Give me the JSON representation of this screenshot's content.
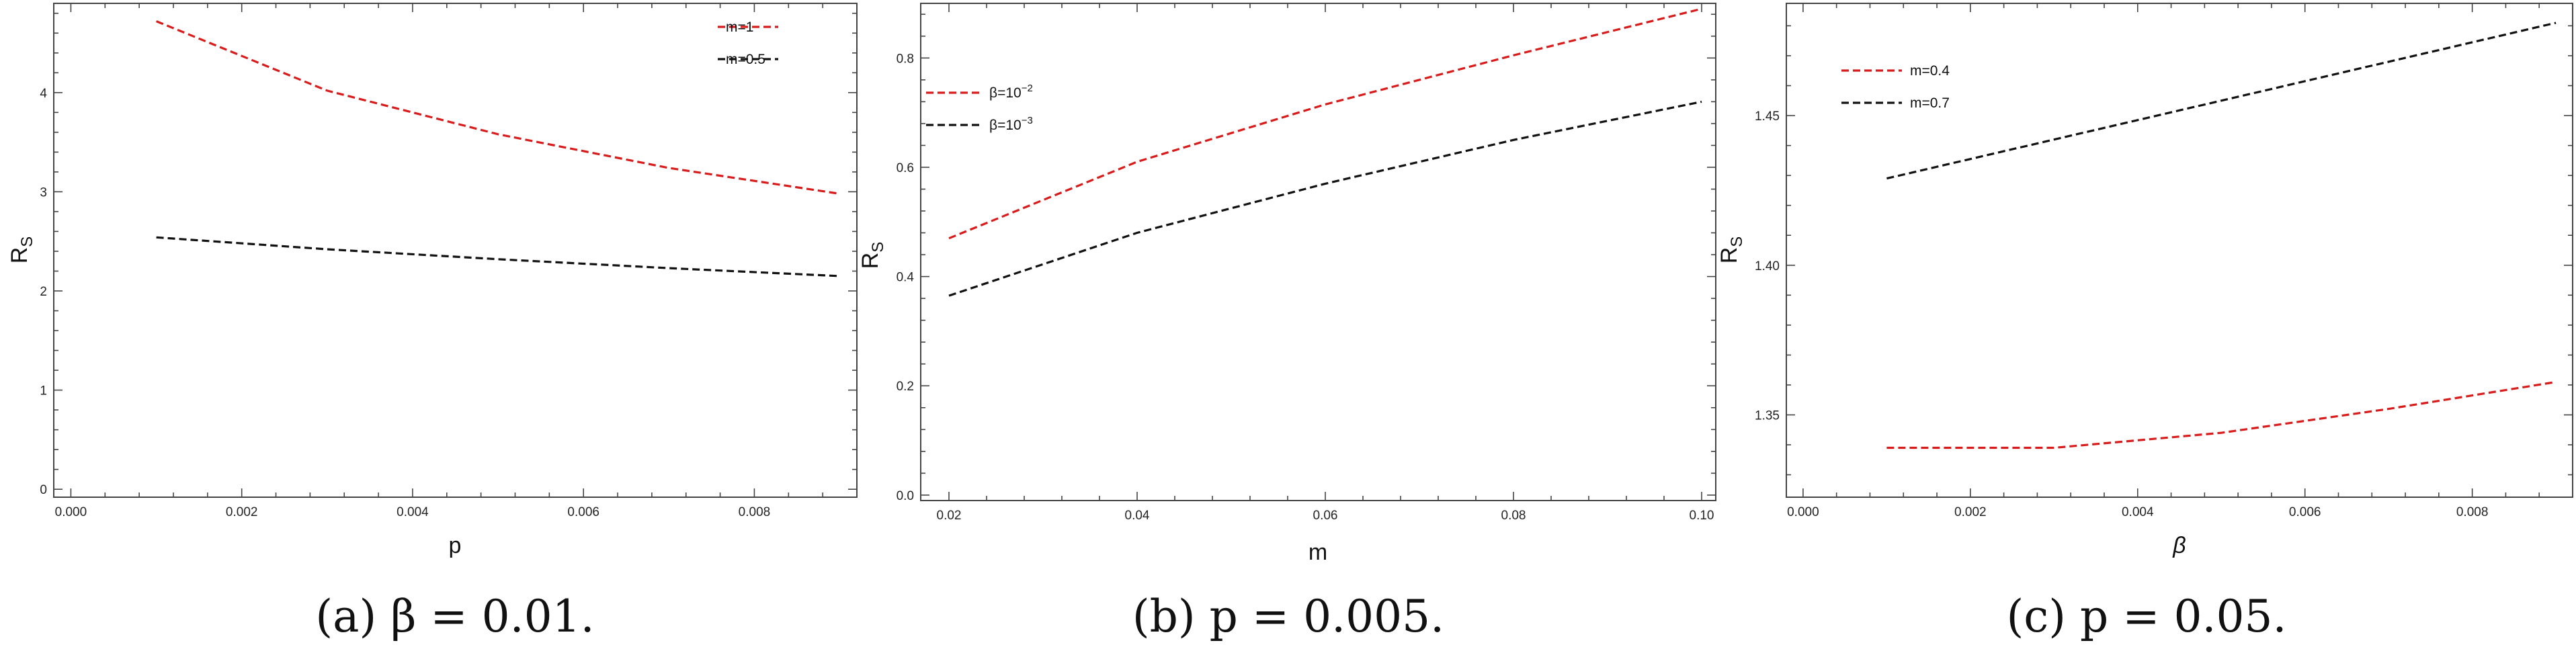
{
  "chart_data": [
    {
      "type": "line",
      "caption": "(a) β = 0.01.",
      "xlabel": "p",
      "ylabel": "R_S",
      "xlim": [
        -0.0002,
        0.0092
      ],
      "ylim": [
        -0.08,
        4.9
      ],
      "xticks": [
        0.0,
        0.002,
        0.004,
        0.006,
        0.008
      ],
      "xtick_labels": [
        "0.000",
        "0.002",
        "0.004",
        "0.006",
        "0.008"
      ],
      "yticks": [
        0,
        1,
        2,
        3,
        4
      ],
      "ytick_labels": [
        "0",
        "1",
        "2",
        "3",
        "4"
      ],
      "legend_position": "top-right",
      "series": [
        {
          "name": "m=1",
          "color": "#d81b1b",
          "dash": "dashed",
          "x": [
            0.001,
            0.003,
            0.005,
            0.007,
            0.009
          ],
          "y": [
            4.72,
            4.02,
            3.58,
            3.24,
            2.98
          ]
        },
        {
          "name": "m=0.5",
          "color": "#111111",
          "dash": "dashed",
          "x": [
            0.001,
            0.003,
            0.005,
            0.007,
            0.009
          ],
          "y": [
            2.54,
            2.42,
            2.32,
            2.23,
            2.15
          ]
        }
      ]
    },
    {
      "type": "line",
      "caption": "(b) p = 0.005.",
      "xlabel": "m",
      "ylabel": "R_S",
      "xlim": [
        0.017,
        0.1015
      ],
      "ylim": [
        -0.01,
        0.9
      ],
      "xticks": [
        0.02,
        0.04,
        0.06,
        0.08,
        0.1
      ],
      "xtick_labels": [
        "0.02",
        "0.04",
        "0.06",
        "0.08",
        "0.10"
      ],
      "yticks": [
        0.0,
        0.2,
        0.4,
        0.6,
        0.8
      ],
      "ytick_labels": [
        "0.0",
        "0.2",
        "0.4",
        "0.6",
        "0.8"
      ],
      "legend_position": "top-left",
      "series": [
        {
          "name": "β=10^-2",
          "legend_base": "β=10",
          "legend_exp": "−2",
          "color": "#d81b1b",
          "dash": "dashed",
          "x": [
            0.02,
            0.04,
            0.06,
            0.08,
            0.1
          ],
          "y": [
            0.47,
            0.61,
            0.715,
            0.805,
            0.89
          ]
        },
        {
          "name": "β=10^-3",
          "legend_base": "β=10",
          "legend_exp": "−3",
          "color": "#111111",
          "dash": "dashed",
          "x": [
            0.02,
            0.04,
            0.06,
            0.08,
            0.1
          ],
          "y": [
            0.365,
            0.48,
            0.57,
            0.65,
            0.72
          ]
        }
      ]
    },
    {
      "type": "line",
      "caption": "(c) p = 0.05.",
      "xlabel": "β",
      "ylabel": "R_S",
      "xlim": [
        -0.0002,
        0.0092
      ],
      "ylim": [
        1.3225,
        1.4875
      ],
      "xticks": [
        0.0,
        0.002,
        0.004,
        0.006,
        0.008
      ],
      "xtick_labels": [
        "0.000",
        "0.002",
        "0.004",
        "0.006",
        "0.008"
      ],
      "yticks": [
        1.35,
        1.4,
        1.45
      ],
      "ytick_labels": [
        "1.35",
        "1.40",
        "1.45"
      ],
      "legend_position": "top-left",
      "series": [
        {
          "name": "m=0.4",
          "color": "#d81b1b",
          "dash": "dashed",
          "x": [
            0.001,
            0.003,
            0.005,
            0.007,
            0.009
          ],
          "y": [
            1.339,
            1.339,
            1.344,
            1.352,
            1.361
          ]
        },
        {
          "name": "m=0.7",
          "color": "#111111",
          "dash": "dashed",
          "x": [
            0.001,
            0.003,
            0.005,
            0.007,
            0.009
          ],
          "y": [
            1.429,
            1.442,
            1.455,
            1.468,
            1.481
          ]
        }
      ]
    }
  ]
}
